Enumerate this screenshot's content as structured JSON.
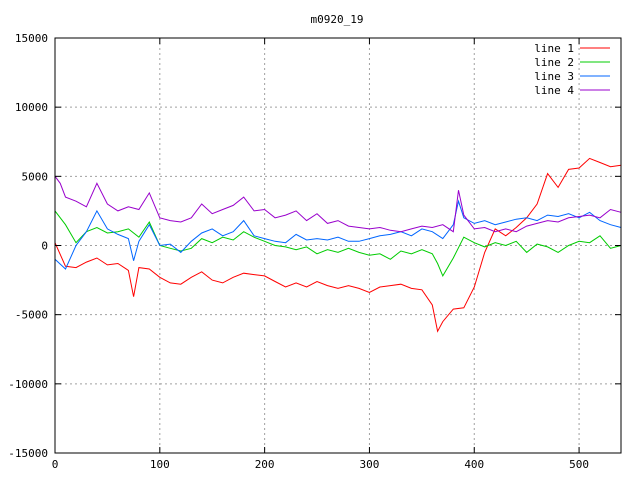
{
  "chart_data": {
    "type": "line",
    "title": "m0920_19",
    "xlabel": "",
    "ylabel": "",
    "xlim": [
      0,
      540
    ],
    "ylim": [
      -15000,
      15000
    ],
    "xticks": [
      0,
      100,
      200,
      300,
      400,
      500
    ],
    "yticks": [
      -15000,
      -10000,
      -5000,
      0,
      5000,
      10000,
      15000
    ],
    "grid": true,
    "legend_position": "top-right",
    "series": [
      {
        "name": "line 1",
        "color": "#ff0000",
        "x": [
          0,
          10,
          20,
          30,
          40,
          50,
          60,
          70,
          75,
          80,
          90,
          100,
          110,
          120,
          130,
          140,
          150,
          160,
          170,
          180,
          190,
          200,
          210,
          220,
          230,
          240,
          250,
          260,
          270,
          280,
          290,
          300,
          310,
          320,
          330,
          340,
          350,
          360,
          365,
          370,
          380,
          390,
          400,
          410,
          420,
          430,
          440,
          450,
          460,
          470,
          480,
          490,
          500,
          510,
          520,
          530,
          540
        ],
        "y": [
          200,
          -1500,
          -1600,
          -1200,
          -900,
          -1400,
          -1300,
          -1800,
          -3700,
          -1600,
          -1700,
          -2300,
          -2700,
          -2800,
          -2300,
          -1900,
          -2500,
          -2700,
          -2300,
          -2000,
          -2100,
          -2200,
          -2600,
          -3000,
          -2700,
          -3000,
          -2600,
          -2900,
          -3100,
          -2900,
          -3100,
          -3400,
          -3000,
          -2900,
          -2800,
          -3100,
          -3200,
          -4300,
          -6200,
          -5500,
          -4600,
          -4500,
          -3000,
          -500,
          1200,
          700,
          1300,
          2000,
          3000,
          5200,
          4200,
          5500,
          5600,
          6300,
          6000,
          5700,
          5800
        ]
      },
      {
        "name": "line 2",
        "color": "#00cc00",
        "x": [
          0,
          10,
          20,
          30,
          40,
          50,
          60,
          70,
          80,
          90,
          100,
          110,
          120,
          130,
          140,
          150,
          160,
          170,
          180,
          190,
          200,
          210,
          220,
          230,
          240,
          250,
          260,
          270,
          280,
          290,
          300,
          310,
          320,
          330,
          340,
          350,
          360,
          365,
          370,
          380,
          390,
          400,
          410,
          420,
          430,
          440,
          450,
          460,
          470,
          480,
          490,
          500,
          510,
          520,
          530,
          540
        ],
        "y": [
          2500,
          1500,
          200,
          1000,
          1300,
          900,
          1000,
          1200,
          600,
          1700,
          0,
          -200,
          -400,
          -200,
          500,
          200,
          600,
          400,
          1000,
          600,
          300,
          0,
          -100,
          -300,
          -100,
          -600,
          -300,
          -500,
          -200,
          -500,
          -700,
          -600,
          -1000,
          -400,
          -600,
          -300,
          -600,
          -1300,
          -2200,
          -900,
          600,
          200,
          -100,
          200,
          0,
          300,
          -500,
          100,
          -100,
          -500,
          0,
          300,
          200,
          700,
          -200,
          0
        ]
      },
      {
        "name": "line 3",
        "color": "#0066ff",
        "x": [
          0,
          10,
          20,
          30,
          40,
          50,
          60,
          70,
          75,
          80,
          90,
          100,
          110,
          120,
          130,
          140,
          150,
          160,
          170,
          180,
          190,
          200,
          210,
          220,
          230,
          240,
          250,
          260,
          270,
          280,
          290,
          300,
          310,
          320,
          330,
          340,
          350,
          360,
          370,
          380,
          385,
          390,
          400,
          410,
          420,
          430,
          440,
          450,
          460,
          470,
          480,
          490,
          500,
          510,
          520,
          530,
          540
        ],
        "y": [
          -1000,
          -1700,
          0,
          1000,
          2500,
          1200,
          800,
          500,
          -1100,
          300,
          1500,
          0,
          100,
          -500,
          300,
          900,
          1200,
          700,
          1000,
          1800,
          700,
          500,
          300,
          200,
          800,
          400,
          500,
          400,
          600,
          300,
          300,
          500,
          700,
          800,
          1000,
          700,
          1200,
          1000,
          500,
          1500,
          3200,
          2000,
          1600,
          1800,
          1500,
          1700,
          1900,
          2000,
          1800,
          2200,
          2100,
          2300,
          2000,
          2400,
          1800,
          1500,
          1300
        ]
      },
      {
        "name": "line 4",
        "color": "#9900cc",
        "x": [
          0,
          5,
          10,
          20,
          30,
          40,
          50,
          60,
          70,
          80,
          90,
          100,
          110,
          120,
          130,
          140,
          150,
          160,
          170,
          180,
          190,
          200,
          210,
          220,
          230,
          240,
          250,
          260,
          270,
          280,
          290,
          300,
          310,
          320,
          330,
          340,
          350,
          360,
          370,
          380,
          385,
          390,
          400,
          410,
          420,
          430,
          440,
          450,
          460,
          470,
          480,
          490,
          500,
          510,
          520,
          530,
          540
        ],
        "y": [
          5000,
          4500,
          3500,
          3200,
          2800,
          4500,
          3000,
          2500,
          2800,
          2600,
          3800,
          2000,
          1800,
          1700,
          2000,
          3000,
          2300,
          2600,
          2900,
          3500,
          2500,
          2600,
          2000,
          2200,
          2500,
          1800,
          2300,
          1600,
          1800,
          1400,
          1300,
          1200,
          1300,
          1100,
          1000,
          1200,
          1400,
          1300,
          1500,
          1000,
          4000,
          2200,
          1200,
          1300,
          1000,
          1200,
          1000,
          1400,
          1600,
          1800,
          1700,
          2000,
          2100,
          2200,
          2000,
          2600,
          2400
        ]
      }
    ]
  }
}
